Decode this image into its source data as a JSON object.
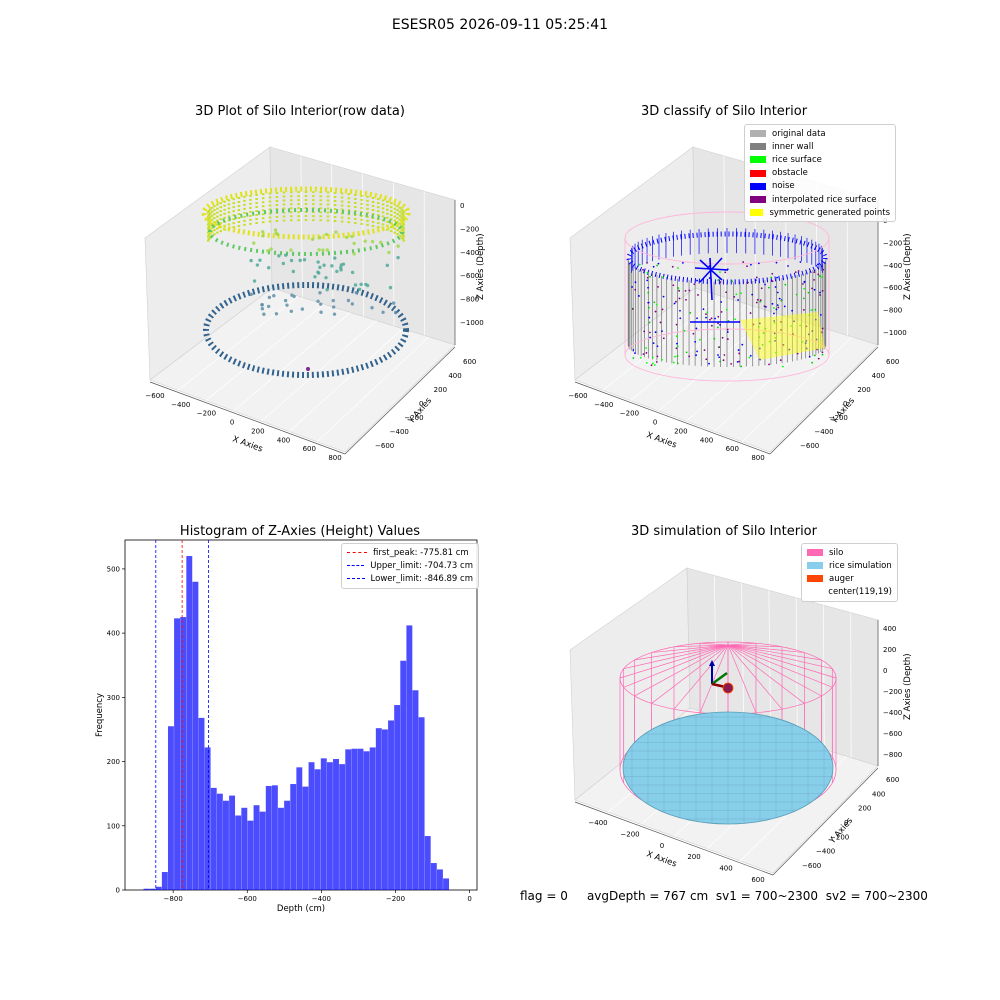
{
  "figure": {
    "suptitle": "ESESR05 2026-09-11 05:25:41",
    "footer": {
      "flag": "flag = 0",
      "avg_depth": "avgDepth = 767 cm",
      "sv1": "sv1 = 700~2300",
      "sv2": "sv2 = 700~2300"
    }
  },
  "chart_data": [
    {
      "type": "scatter",
      "subtype": "3d-scatter",
      "title": "3D Plot of Silo Interior(row data)",
      "xlabel": "X Axies",
      "ylabel": "Y Axies",
      "zlabel": "Z Axies (Depth)",
      "x_ticks": [
        "−600",
        "−400",
        "−200",
        "0",
        "200",
        "400",
        "600",
        "800"
      ],
      "y_ticks": [
        "−600",
        "−400",
        "−200",
        "0",
        "200",
        "400",
        "600"
      ],
      "z_ticks": [
        "0",
        "−200",
        "−400",
        "−600",
        "−800",
        "−1000"
      ],
      "colormap": "viridis"
    },
    {
      "type": "scatter",
      "subtype": "3d-scatter",
      "title": "3D classify of Silo Interior",
      "xlabel": "X Axies",
      "ylabel": "Y Axies",
      "zlabel": "Z Axies (Depth)",
      "x_ticks": [
        "−600",
        "−400",
        "−200",
        "0",
        "200",
        "400",
        "600",
        "800"
      ],
      "y_ticks": [
        "−600",
        "−400",
        "−200",
        "0",
        "200",
        "400",
        "600"
      ],
      "z_ticks": [
        "0",
        "−200",
        "−400",
        "−600",
        "−800",
        "−1000"
      ],
      "legend_position": "top-right",
      "legend": [
        {
          "label": "original data",
          "color": "#b0b0b0"
        },
        {
          "label": "inner wall",
          "color": "#808080"
        },
        {
          "label": "rice surface",
          "color": "#00ff00"
        },
        {
          "label": "obstacle",
          "color": "#ff0000"
        },
        {
          "label": "noise",
          "color": "#0000ff"
        },
        {
          "label": "interpolated rice surface",
          "color": "#800080"
        },
        {
          "label": "symmetric generated points",
          "color": "#ffff00"
        }
      ]
    },
    {
      "type": "bar",
      "subtype": "histogram",
      "title": "Histogram of Z-Axies (Height) Values",
      "xlabel": "Depth (cm)",
      "ylabel": "Frequency",
      "xlim": [
        -930,
        20
      ],
      "ylim": [
        0,
        545
      ],
      "x_ticks": [
        -800,
        -600,
        -400,
        -200,
        0
      ],
      "x_tick_labels": [
        "−800",
        "−600",
        "−400",
        "−200",
        "0"
      ],
      "y_ticks": [
        0,
        100,
        200,
        300,
        400,
        500
      ],
      "bin_start": -880,
      "bin_width": 16.5,
      "values": [
        2,
        2,
        5,
        28,
        255,
        423,
        425,
        520,
        480,
        268,
        222,
        159,
        150,
        139,
        147,
        116,
        128,
        108,
        132,
        122,
        162,
        163,
        128,
        139,
        165,
        191,
        161,
        199,
        188,
        205,
        199,
        204,
        196,
        219,
        220,
        220,
        216,
        222,
        252,
        250,
        264,
        288,
        357,
        412,
        311,
        269,
        84,
        42,
        32,
        18
      ],
      "bar_color": "#0000ff",
      "vlines": [
        {
          "label": "first_peak: -775.81 cm",
          "x": -775.81,
          "color": "#ff0000"
        },
        {
          "label": "Upper_limit: -704.73 cm",
          "x": -704.73,
          "color": "#0000ff"
        },
        {
          "label": "Lower_limit: -846.89 cm",
          "x": -846.89,
          "color": "#0000ff"
        }
      ],
      "legend_position": "top-right"
    },
    {
      "type": "scatter",
      "subtype": "3d-surface",
      "title": "3D simulation of Silo Interior",
      "xlabel": "X Axies",
      "ylabel": "Y Axies",
      "zlabel": "Z Axies (Depth)",
      "x_ticks": [
        "−400",
        "−200",
        "0",
        "200",
        "400",
        "600"
      ],
      "y_ticks": [
        "−600",
        "−400",
        "−200",
        "0",
        "200",
        "400",
        "600"
      ],
      "z_ticks": [
        "400",
        "200",
        "0",
        "−200",
        "−400",
        "−600",
        "−800"
      ],
      "legend_position": "top-right",
      "legend": [
        {
          "label": "silo",
          "color": "#ff69b4"
        },
        {
          "label": "rice simulation",
          "color": "#87ceeb"
        },
        {
          "label": "auger",
          "color": "#ff4500"
        },
        {
          "label": "center(119,19)",
          "color": ""
        }
      ]
    }
  ]
}
